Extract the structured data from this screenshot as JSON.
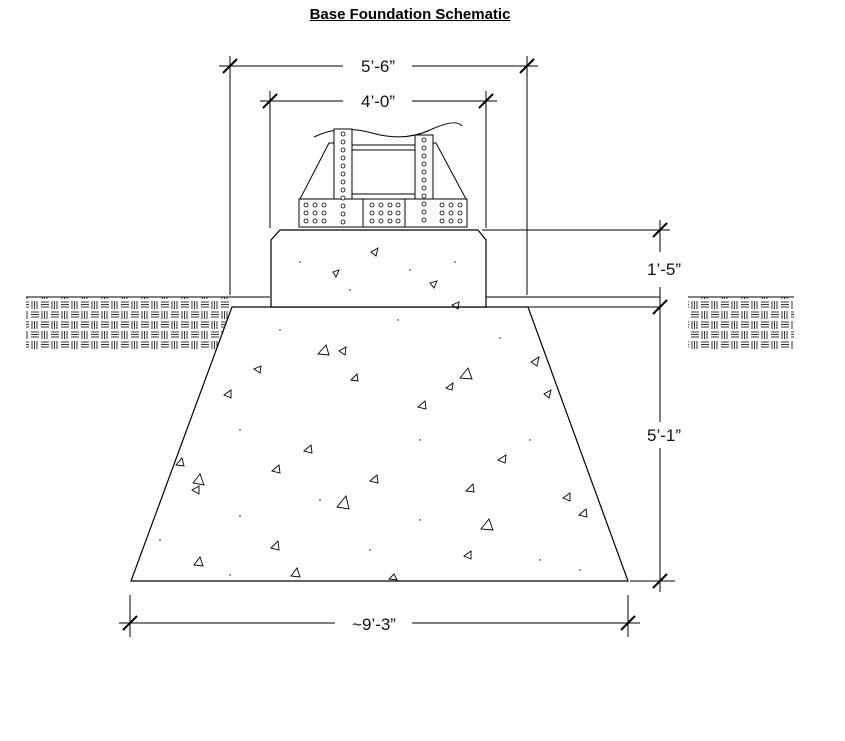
{
  "title": "Base Foundation Schematic",
  "dimensions": {
    "pedestal_outer_width": "5’-6”",
    "tower_base_width": "4’-0”",
    "pedestal_height": "1’-5”",
    "footing_depth": "5’-1”",
    "footing_bottom_width": "~9’-3”"
  }
}
